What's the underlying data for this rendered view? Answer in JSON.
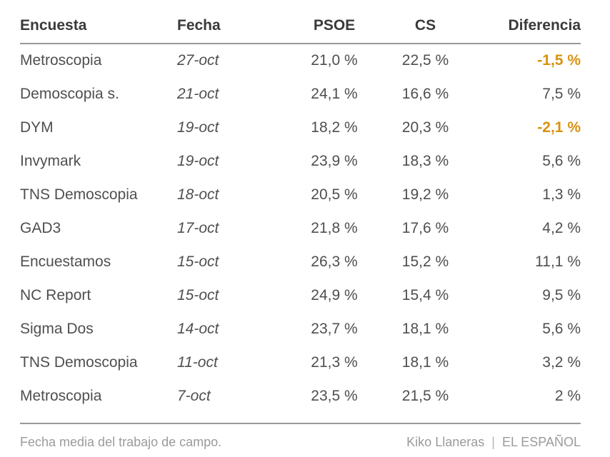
{
  "chart_data": {
    "type": "table",
    "columns": [
      "Encuesta",
      "Fecha",
      "PSOE",
      "CS",
      "Diferencia"
    ],
    "rows": [
      {
        "encuesta": "Metroscopia",
        "fecha": "27-oct",
        "psoe": "21,0 %",
        "cs": "22,5 %",
        "diferencia": "-1,5 %",
        "negative": true
      },
      {
        "encuesta": "Demoscopia s.",
        "fecha": "21-oct",
        "psoe": "24,1 %",
        "cs": "16,6 %",
        "diferencia": "7,5 %",
        "negative": false
      },
      {
        "encuesta": "DYM",
        "fecha": "19-oct",
        "psoe": "18,2 %",
        "cs": "20,3 %",
        "diferencia": "-2,1 %",
        "negative": true
      },
      {
        "encuesta": "Invymark",
        "fecha": "19-oct",
        "psoe": "23,9 %",
        "cs": "18,3 %",
        "diferencia": "5,6 %",
        "negative": false
      },
      {
        "encuesta": "TNS Demoscopia",
        "fecha": "18-oct",
        "psoe": "20,5 %",
        "cs": "19,2 %",
        "diferencia": "1,3 %",
        "negative": false
      },
      {
        "encuesta": "GAD3",
        "fecha": "17-oct",
        "psoe": "21,8 %",
        "cs": "17,6 %",
        "diferencia": "4,2 %",
        "negative": false
      },
      {
        "encuesta": "Encuestamos",
        "fecha": "15-oct",
        "psoe": "26,3 %",
        "cs": "15,2 %",
        "diferencia": "11,1 %",
        "negative": false
      },
      {
        "encuesta": "NC Report",
        "fecha": "15-oct",
        "psoe": "24,9 %",
        "cs": "15,4 %",
        "diferencia": "9,5 %",
        "negative": false
      },
      {
        "encuesta": "Sigma Dos",
        "fecha": "14-oct",
        "psoe": "23,7 %",
        "cs": "18,1 %",
        "diferencia": "5,6 %",
        "negative": false
      },
      {
        "encuesta": "TNS Demoscopia",
        "fecha": "11-oct",
        "psoe": "21,3 %",
        "cs": "18,1 %",
        "diferencia": "3,2 %",
        "negative": false
      },
      {
        "encuesta": "Metroscopia",
        "fecha": "7-oct",
        "psoe": "23,5 %",
        "cs": "21,5 %",
        "diferencia": "2 %",
        "negative": false
      }
    ],
    "numeric": {
      "psoe": [
        21.0,
        24.1,
        18.2,
        23.9,
        20.5,
        21.8,
        26.3,
        24.9,
        23.7,
        21.3,
        23.5
      ],
      "cs": [
        22.5,
        16.6,
        20.3,
        18.3,
        19.2,
        17.6,
        15.2,
        15.4,
        18.1,
        18.1,
        21.5
      ],
      "diferencia": [
        -1.5,
        7.5,
        -2.1,
        5.6,
        1.3,
        4.2,
        11.1,
        9.5,
        5.6,
        3.2,
        2.0
      ]
    }
  },
  "header": {
    "col_encuesta": "Encuesta",
    "col_fecha": "Fecha",
    "col_psoe": "PSOE",
    "col_cs": "CS",
    "col_diferencia": "Diferencia"
  },
  "footer": {
    "note": "Fecha media del trabajo de campo.",
    "credit_author": "Kiko Llaneras",
    "credit_separator": "|",
    "credit_source": "EL ESPAÑOL"
  },
  "colors": {
    "negative": "#d9920f",
    "header_text": "#3a3a3a",
    "body_text": "#4f4f4f",
    "muted": "#9b9b9b",
    "rule": "#999999"
  }
}
